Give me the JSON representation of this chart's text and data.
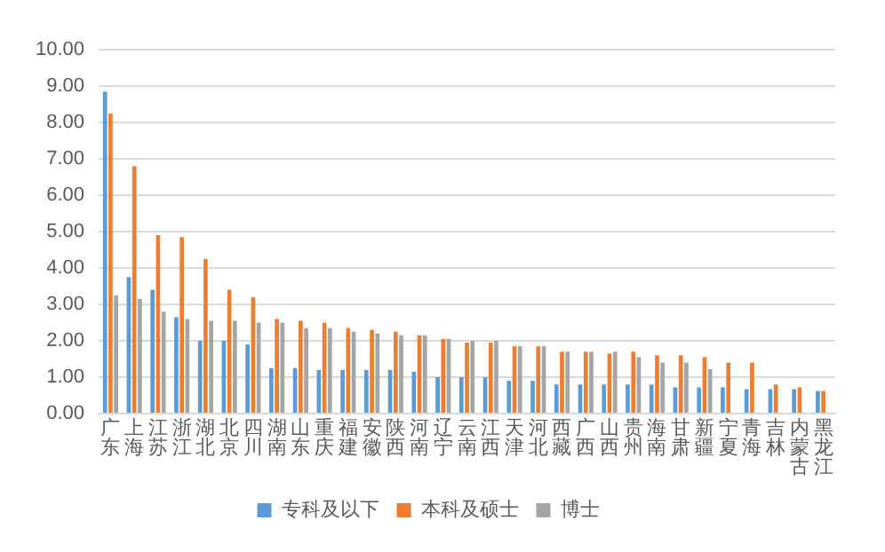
{
  "chart_data": {
    "type": "bar",
    "categories": [
      "广东",
      "上海",
      "江苏",
      "浙江",
      "湖北",
      "北京",
      "四川",
      "湖南",
      "山东",
      "重庆",
      "福建",
      "安徽",
      "陕西",
      "河南",
      "辽宁",
      "云南",
      "江西",
      "天津",
      "河北",
      "西藏",
      "广西",
      "山西",
      "贵州",
      "海南",
      "甘肃",
      "新疆",
      "宁夏",
      "青海",
      "吉林",
      "内蒙古",
      "黑龙江"
    ],
    "series": [
      {
        "name": "专科及以下",
        "color": "#5b9bd5",
        "values": [
          8.85,
          3.75,
          3.4,
          2.65,
          2.0,
          2.0,
          1.9,
          1.25,
          1.25,
          1.2,
          1.2,
          1.2,
          1.2,
          1.15,
          1.0,
          1.0,
          1.0,
          0.9,
          0.9,
          0.8,
          0.8,
          0.8,
          0.8,
          0.8,
          0.72,
          0.72,
          0.72,
          0.67,
          0.67,
          0.67,
          0.62
        ]
      },
      {
        "name": "本科及硕士",
        "color": "#ed7d31",
        "values": [
          8.25,
          6.8,
          4.9,
          4.85,
          4.25,
          3.4,
          3.2,
          2.6,
          2.55,
          2.5,
          2.35,
          2.3,
          2.25,
          2.15,
          2.05,
          1.95,
          1.95,
          1.85,
          1.85,
          1.7,
          1.7,
          1.65,
          1.7,
          1.6,
          1.6,
          1.55,
          1.4,
          1.4,
          0.8,
          0.72,
          0.62
        ]
      },
      {
        "name": "博士",
        "color": "#a5a5a5",
        "values": [
          3.25,
          3.15,
          2.8,
          2.6,
          2.55,
          2.55,
          2.5,
          2.5,
          2.35,
          2.35,
          2.25,
          2.2,
          2.15,
          2.15,
          2.05,
          2.0,
          2.0,
          1.85,
          1.85,
          1.7,
          1.7,
          1.7,
          1.55,
          1.4,
          1.4,
          1.22,
          null,
          null,
          null,
          null,
          null
        ]
      }
    ],
    "ylim": [
      0,
      10
    ],
    "yticks": [
      {
        "value": 0,
        "label": "0.00"
      },
      {
        "value": 1,
        "label": "1.00"
      },
      {
        "value": 2,
        "label": "2.00"
      },
      {
        "value": 3,
        "label": "3.00"
      },
      {
        "value": 4,
        "label": "4.00"
      },
      {
        "value": 5,
        "label": "5.00"
      },
      {
        "value": 6,
        "label": "6.00"
      },
      {
        "value": 7,
        "label": "7.00"
      },
      {
        "value": 8,
        "label": "8.00"
      },
      {
        "value": 9,
        "label": "9.00"
      },
      {
        "value": 10,
        "label": "10.00"
      }
    ],
    "grid": "y",
    "legend": "bottom"
  }
}
